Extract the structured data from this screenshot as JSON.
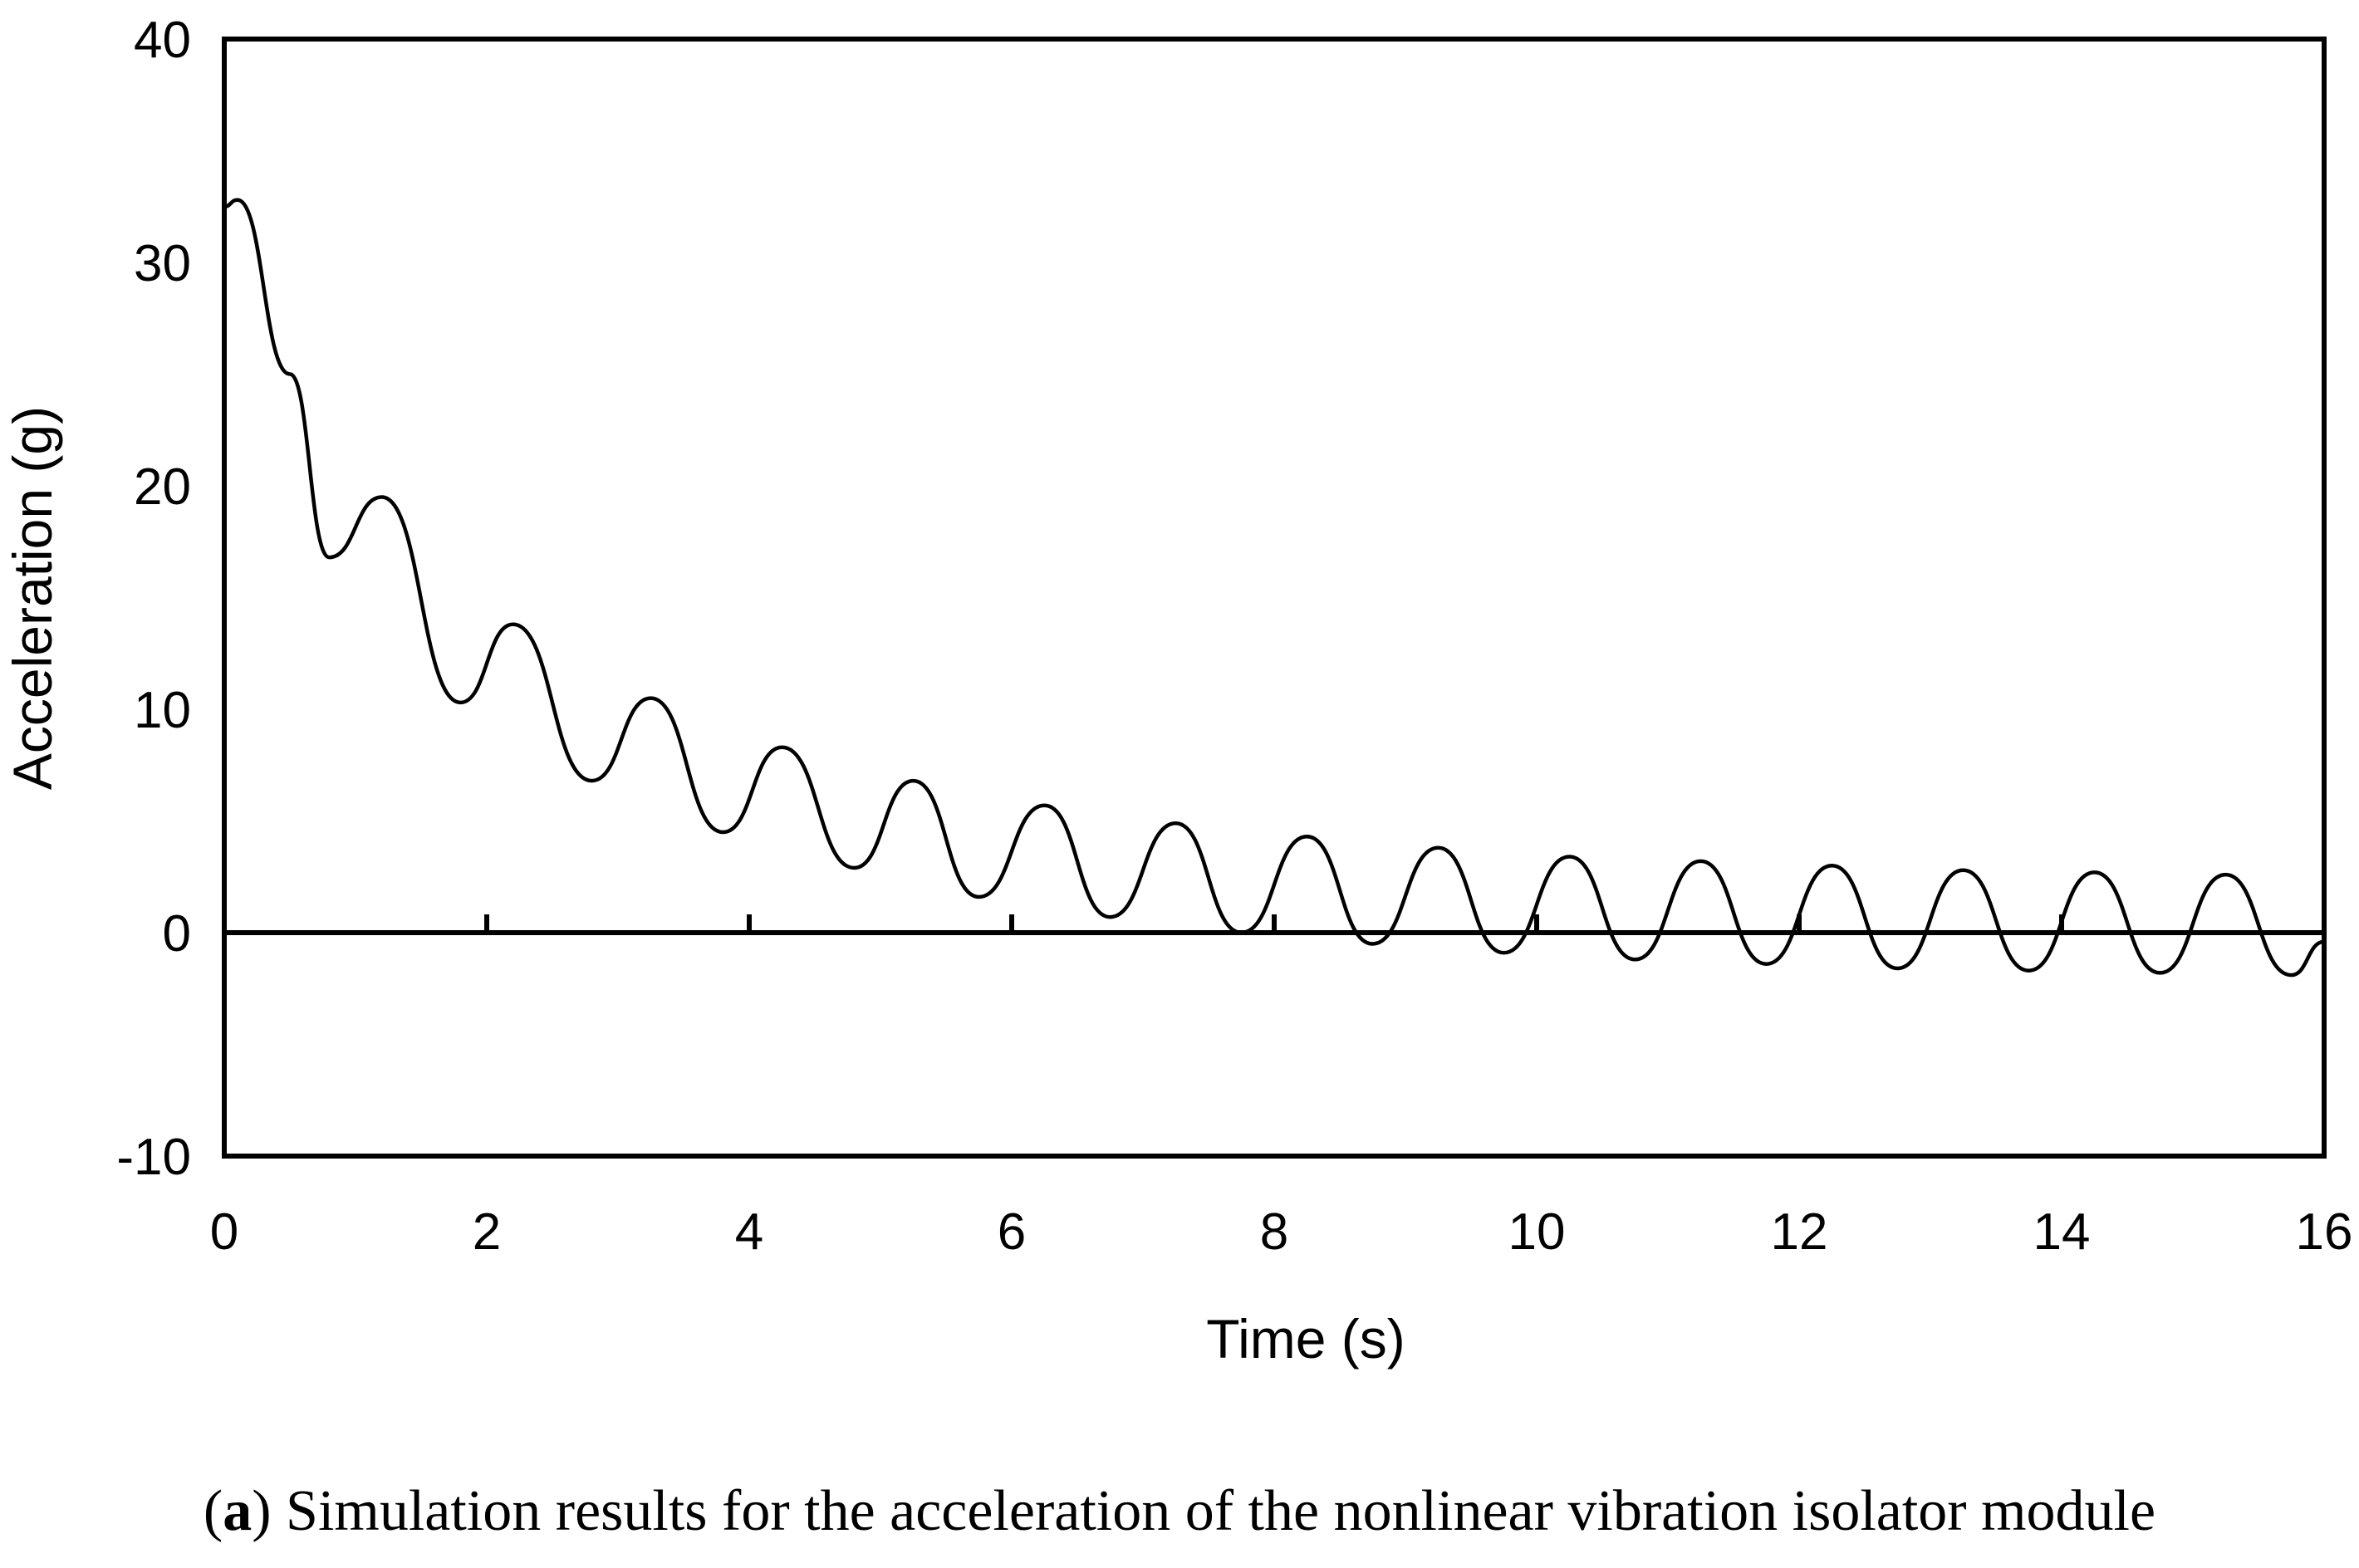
{
  "chart_data": {
    "type": "line",
    "title": "",
    "xlabel": "Time (s)",
    "ylabel": "Acceleration (g)",
    "xlim": [
      0,
      16
    ],
    "ylim": [
      -10,
      40
    ],
    "xticks": [
      "0",
      "2",
      "4",
      "6",
      "8",
      "10",
      "12",
      "14",
      "16"
    ],
    "yticks": [
      "40",
      "30",
      "20",
      "10",
      "0",
      "-10"
    ],
    "grid": false,
    "series": [
      {
        "name": "Acceleration",
        "x": [
          0.0,
          0.1,
          0.5,
          0.8,
          1.2,
          1.8,
          2.2,
          2.8,
          3.25,
          3.8,
          4.25,
          4.8,
          5.25,
          5.75,
          6.25,
          6.75,
          7.25,
          7.75,
          8.25,
          8.75,
          9.25,
          9.75,
          10.25,
          10.75,
          11.25,
          11.75,
          12.25,
          12.75,
          13.25,
          13.75,
          14.25,
          14.75,
          15.25,
          15.75,
          16.0
        ],
        "y": [
          32.5,
          32.8,
          25.0,
          16.8,
          19.5,
          10.3,
          13.8,
          6.8,
          10.5,
          4.5,
          8.3,
          2.9,
          6.8,
          1.6,
          5.7,
          0.7,
          4.9,
          0.0,
          4.3,
          -0.5,
          3.8,
          -0.9,
          3.4,
          -1.2,
          3.2,
          -1.4,
          3.0,
          -1.6,
          2.8,
          -1.7,
          2.7,
          -1.8,
          2.6,
          -1.9,
          -0.4
        ]
      }
    ]
  },
  "caption": {
    "label": "a",
    "text": "Simulation results for the acceleration of the nonlinear vibration isolator module"
  }
}
